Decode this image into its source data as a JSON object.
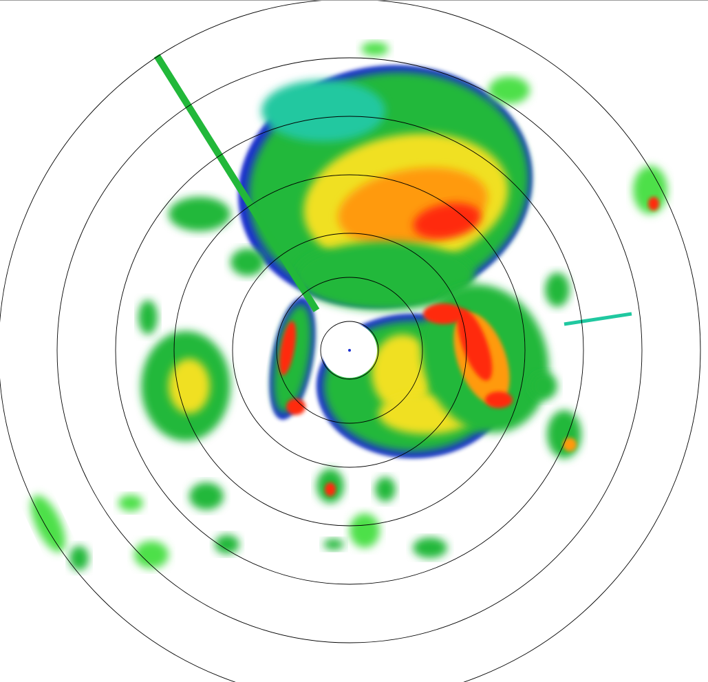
{
  "radar": {
    "colors": {
      "weak": "#1a2fd0",
      "light": "#20c8a0",
      "moderate": "#22b83a",
      "bright_green": "#4ee04a",
      "heavy": "#f0e020",
      "very_heavy": "#ff9a10",
      "intense": "#ff2a10",
      "range_ring": "#000000"
    },
    "range_ring_count": 7
  }
}
